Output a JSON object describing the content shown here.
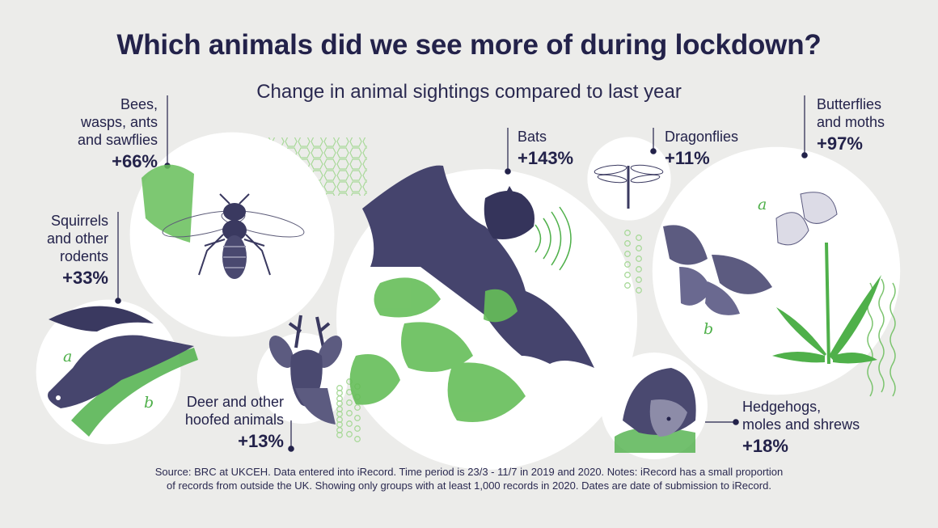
{
  "title": "Which animals did we see more of during lockdown?",
  "subtitle": "Change in animal sightings compared to last year",
  "colors": {
    "navy": "#23224a",
    "green": "#4fb04a",
    "light_green": "#a9d99a",
    "circle_fill": "#ffffff",
    "background": "#ececea"
  },
  "chart_data": {
    "type": "bubble",
    "title": "Which animals did we see more of during lockdown?",
    "subtitle": "Change in animal sightings compared to last year",
    "unit": "%",
    "categories": [
      "Bees, wasps, ants and sawflies",
      "Squirrels and other rodents",
      "Deer and other hoofed animals",
      "Bats",
      "Dragonflies",
      "Butterflies and moths",
      "Hedgehogs, moles and shrews"
    ],
    "values": [
      66,
      33,
      13,
      143,
      11,
      97,
      18
    ],
    "items": [
      {
        "name": "Bees, wasps, ants and sawflies",
        "label": "+66%",
        "value": 66
      },
      {
        "name": "Squirrels and other rodents",
        "label": "+33%",
        "value": 33
      },
      {
        "name": "Deer and other hoofed animals",
        "label": "+13%",
        "value": 13
      },
      {
        "name": "Bats",
        "label": "+143%",
        "value": 143
      },
      {
        "name": "Dragonflies",
        "label": "+11%",
        "value": 11
      },
      {
        "name": "Butterflies and moths",
        "label": "+97%",
        "value": 97
      },
      {
        "name": "Hedgehogs, moles and shrews",
        "label": "+18%",
        "value": 18
      }
    ]
  },
  "labels": {
    "bees": {
      "line1": "Bees,",
      "line2": "wasps, ants",
      "line3": "and sawflies",
      "value": "+66%"
    },
    "squirrels": {
      "line1": "Squirrels",
      "line2": "and other",
      "line3": "rodents",
      "value": "+33%"
    },
    "deer": {
      "line1": "Deer and other",
      "line2": "hoofed animals",
      "value": "+13%"
    },
    "bats": {
      "line1": "Bats",
      "value": "+143%"
    },
    "dragonflies": {
      "line1": "Dragonflies",
      "value": "+11%"
    },
    "butterflies": {
      "line1": "Butterflies",
      "line2": "and moths",
      "value": "+97%"
    },
    "hedgehogs": {
      "line1": "Hedgehogs,",
      "line2": "moles and shrews",
      "value": "+18%"
    }
  },
  "illustration_letters": {
    "squirrel_a": "a",
    "squirrel_b": "b",
    "butterfly_a": "a",
    "butterfly_b": "b"
  },
  "source": {
    "line1": "Source: BRC at UKCEH. Data entered into iRecord. Time period is 23/3 - 11/7 in 2019 and 2020. Notes: iRecord has a small proportion",
    "line2": "of records from outside the UK. Showing only groups with at least 1,000 records in 2020. Dates are date of submission to iRecord."
  }
}
